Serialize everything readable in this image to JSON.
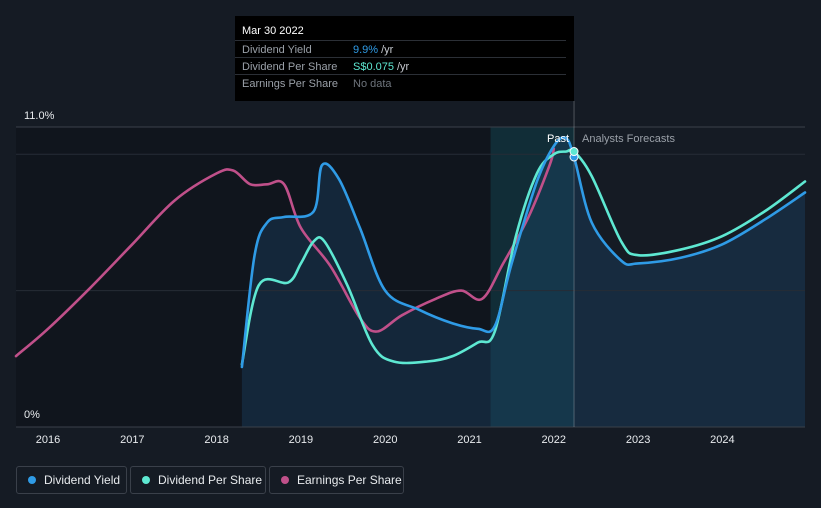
{
  "tooltip": {
    "date": "Mar 30 2022",
    "rows": [
      {
        "label": "Dividend Yield",
        "value": "9.9%",
        "unit": "/yr",
        "color": "#2f9be6"
      },
      {
        "label": "Dividend Per Share",
        "value": "S$0.075",
        "unit": "/yr",
        "color": "#5ee8d2"
      },
      {
        "label": "Earnings Per Share",
        "value": "No data",
        "unit": "",
        "color": "#6e747c"
      }
    ]
  },
  "labels": {
    "past": "Past",
    "forecast": "Analysts Forecasts"
  },
  "legend": [
    {
      "label": "Dividend Yield",
      "color": "#2f9be6"
    },
    {
      "label": "Dividend Per Share",
      "color": "#5ee8d2"
    },
    {
      "label": "Earnings Per Share",
      "color": "#c0508a"
    }
  ],
  "chart_data": {
    "type": "line",
    "y_ticks": [
      "11.0%",
      "0%"
    ],
    "ylim": [
      0,
      11
    ],
    "x_ticks": [
      "2016",
      "2017",
      "2018",
      "2019",
      "2020",
      "2021",
      "2022",
      "2023",
      "2024"
    ],
    "xlim": [
      2015.62,
      2024.98
    ],
    "past_region_start": 2021.25,
    "tooltip_date": 2022.24,
    "grid": "horizontal",
    "series": [
      {
        "name": "Dividend Yield",
        "color": "#2f9be6",
        "points": [
          [
            2018.3,
            2.2
          ],
          [
            2018.45,
            6.3
          ],
          [
            2018.6,
            7.5
          ],
          [
            2018.8,
            7.7
          ],
          [
            2019.15,
            7.9
          ],
          [
            2019.25,
            9.6
          ],
          [
            2019.45,
            9.1
          ],
          [
            2019.7,
            7.3
          ],
          [
            2020.0,
            5.0
          ],
          [
            2020.4,
            4.3
          ],
          [
            2020.8,
            3.8
          ],
          [
            2021.1,
            3.6
          ],
          [
            2021.3,
            3.7
          ],
          [
            2021.5,
            6.0
          ],
          [
            2021.8,
            9.0
          ],
          [
            2022.0,
            10.3
          ],
          [
            2022.14,
            10.6
          ],
          [
            2022.24,
            9.9
          ],
          [
            2022.45,
            7.5
          ],
          [
            2022.8,
            6.1
          ],
          [
            2023.0,
            6.0
          ],
          [
            2023.5,
            6.2
          ],
          [
            2024.0,
            6.7
          ],
          [
            2024.5,
            7.6
          ],
          [
            2024.98,
            8.6
          ]
        ]
      },
      {
        "name": "Dividend Per Share",
        "color": "#5ee8d2",
        "points": [
          [
            2018.3,
            2.3
          ],
          [
            2018.5,
            5.2
          ],
          [
            2018.85,
            5.3
          ],
          [
            2019.0,
            6.0
          ],
          [
            2019.15,
            6.8
          ],
          [
            2019.28,
            6.8
          ],
          [
            2019.55,
            5.2
          ],
          [
            2019.85,
            3.0
          ],
          [
            2020.1,
            2.4
          ],
          [
            2020.5,
            2.4
          ],
          [
            2020.8,
            2.6
          ],
          [
            2021.1,
            3.1
          ],
          [
            2021.3,
            3.5
          ],
          [
            2021.55,
            7.0
          ],
          [
            2021.8,
            9.3
          ],
          [
            2022.0,
            10.0
          ],
          [
            2022.15,
            10.1
          ],
          [
            2022.24,
            10.1
          ],
          [
            2022.45,
            9.2
          ],
          [
            2022.8,
            6.8
          ],
          [
            2023.0,
            6.3
          ],
          [
            2023.5,
            6.5
          ],
          [
            2024.0,
            7.0
          ],
          [
            2024.5,
            7.9
          ],
          [
            2024.98,
            9.0
          ]
        ]
      },
      {
        "name": "Earnings Per Share",
        "color": "#c0508a",
        "points": [
          [
            2015.62,
            2.6
          ],
          [
            2016.0,
            3.6
          ],
          [
            2016.5,
            5.1
          ],
          [
            2017.0,
            6.7
          ],
          [
            2017.5,
            8.3
          ],
          [
            2018.0,
            9.3
          ],
          [
            2018.2,
            9.4
          ],
          [
            2018.4,
            8.9
          ],
          [
            2018.6,
            8.9
          ],
          [
            2018.8,
            8.9
          ],
          [
            2019.0,
            7.3
          ],
          [
            2019.35,
            5.9
          ],
          [
            2019.7,
            4.0
          ],
          [
            2019.9,
            3.5
          ],
          [
            2020.2,
            4.1
          ],
          [
            2020.6,
            4.7
          ],
          [
            2020.9,
            5.0
          ],
          [
            2021.15,
            4.7
          ],
          [
            2021.4,
            6.0
          ],
          [
            2021.7,
            7.7
          ],
          [
            2021.95,
            9.6
          ],
          [
            2022.0,
            10.2
          ]
        ]
      }
    ]
  }
}
